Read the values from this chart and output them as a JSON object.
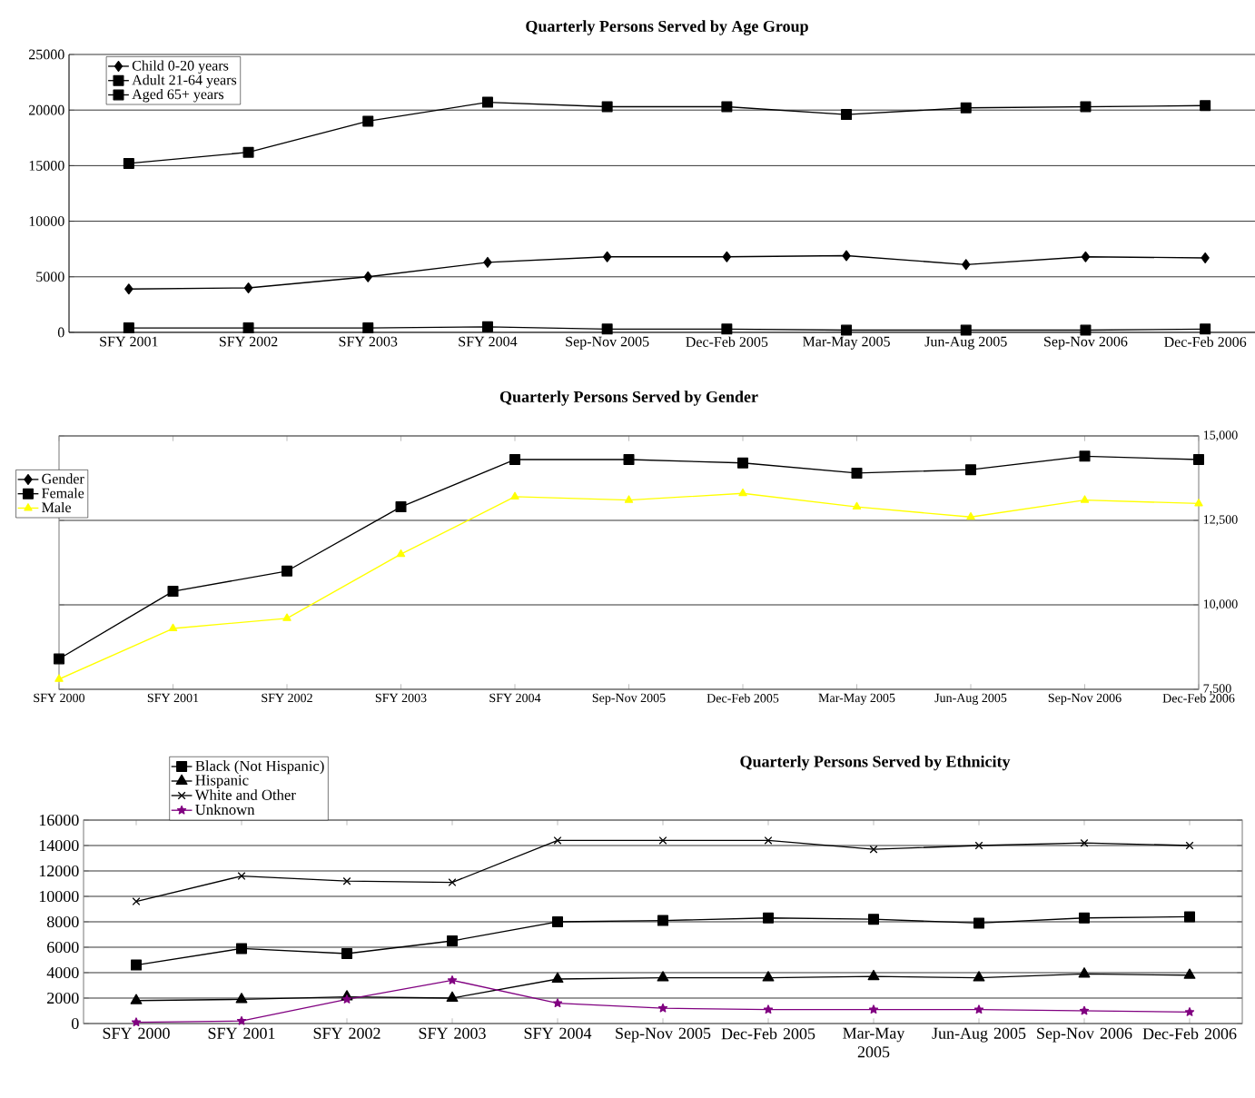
{
  "chart_data": [
    {
      "type": "line",
      "title": "Quarterly Persons Served by Age Group",
      "categories": [
        "SFY 2001",
        "SFY 2002",
        "SFY 2003",
        "SFY 2004",
        "Sep-Nov 2005",
        "Dec-Feb 2005",
        "Mar-May 2005",
        "Jun-Aug 2005",
        "Sep-Nov 2006",
        "Dec-Feb 2006"
      ],
      "series": [
        {
          "name": "Child 0-20 years",
          "color": "#000000",
          "marker": "diamond",
          "values": [
            3900,
            4000,
            5000,
            6300,
            6800,
            6800,
            6900,
            6100,
            6800,
            6700
          ]
        },
        {
          "name": "Adult 21-64 years",
          "color": "#000000",
          "marker": "square",
          "values": [
            15200,
            16200,
            19000,
            20700,
            20300,
            20300,
            19600,
            20200,
            20300,
            20400
          ]
        },
        {
          "name": "Aged 65+ years",
          "color": "#000000",
          "marker": "square",
          "values": [
            400,
            400,
            400,
            500,
            300,
            300,
            200,
            200,
            200,
            300
          ]
        }
      ],
      "ylim": [
        0,
        25000
      ],
      "yticks": [
        0,
        5000,
        10000,
        15000,
        20000,
        25000
      ],
      "grid": "y",
      "legend": "top left"
    },
    {
      "type": "line",
      "title": "Quarterly Persons Served by Gender",
      "categories": [
        "SFY 2000",
        "SFY 2001",
        "SFY 2002",
        "SFY 2003",
        "SFY 2004",
        "Sep-Nov 2005",
        "Dec-Feb 2005",
        "Mar-May 2005",
        "Jun-Aug 2005",
        "Sep-Nov 2006",
        "Dec-Feb 2006"
      ],
      "series": [
        {
          "name": "Gender",
          "color": "#000000",
          "marker": "diamond",
          "values": [
            null,
            null,
            null,
            null,
            null,
            null,
            null,
            null,
            null,
            null,
            null
          ]
        },
        {
          "name": "Female",
          "color": "#000000",
          "marker": "square",
          "values": [
            8400,
            10400,
            11000,
            12900,
            14300,
            14300,
            14200,
            13900,
            14000,
            14400,
            14300
          ]
        },
        {
          "name": "Male",
          "color": "#ffff00",
          "marker": "triangle",
          "values": [
            7800,
            9300,
            9600,
            11500,
            13200,
            13100,
            13300,
            12900,
            12600,
            13100,
            13000
          ]
        }
      ],
      "ylim": [
        7500,
        15000
      ],
      "yticks": [
        {
          "value": 7500,
          "label": "7,500"
        },
        {
          "value": 10000,
          "label": "10,000"
        },
        {
          "value": 12500,
          "label": "12,500"
        },
        {
          "value": 15000,
          "label": "15,000"
        }
      ],
      "grid": "y",
      "legend": "left"
    },
    {
      "type": "line",
      "title": "Quarterly Persons Served by Ethnicity",
      "categories": [
        "SFY 2000",
        "SFY 2001",
        "SFY 2002",
        "SFY 2003",
        "SFY 2004",
        "Sep-Nov 2005",
        "Dec-Feb 2005",
        "Mar-May 2005",
        "Jun-Aug 2005",
        "Sep-Nov 2006",
        "Dec-Feb 2006"
      ],
      "series": [
        {
          "name": "Black (Not Hispanic)",
          "color": "#000000",
          "marker": "square",
          "values": [
            4600,
            5900,
            5500,
            6500,
            8000,
            8100,
            8300,
            8200,
            7900,
            8300,
            8400
          ]
        },
        {
          "name": "Hispanic",
          "color": "#000000",
          "marker": "triangle",
          "values": [
            1800,
            1900,
            2100,
            2000,
            3500,
            3600,
            3600,
            3700,
            3600,
            3900,
            3800
          ]
        },
        {
          "name": "White and Other",
          "color": "#000000",
          "marker": "cross",
          "values": [
            9600,
            11600,
            11200,
            11100,
            14400,
            14400,
            14400,
            13700,
            14000,
            14200,
            14000
          ]
        },
        {
          "name": "Unknown",
          "color": "#800080",
          "marker": "star",
          "values": [
            100,
            200,
            1900,
            3400,
            1600,
            1200,
            1100,
            1100,
            1100,
            1000,
            900
          ]
        }
      ],
      "ylim": [
        0,
        16000
      ],
      "yticks": [
        0,
        2000,
        4000,
        6000,
        8000,
        10000,
        12000,
        14000,
        16000
      ],
      "grid": "y",
      "legend": "top left"
    }
  ]
}
